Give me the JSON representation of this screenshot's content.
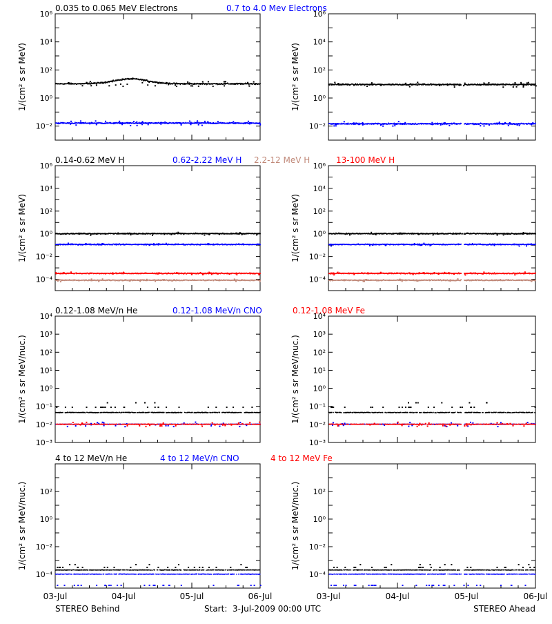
{
  "colors": {
    "black": "#000000",
    "blue": "#0000ff",
    "tan": "#c08878",
    "red": "#ff0000"
  },
  "footer": {
    "left": "STEREO Behind",
    "center": "Start:  3-Jul-2009 00:00 UTC",
    "right": "STEREO Ahead"
  },
  "time_axis": {
    "range": [
      "03-Jul",
      "06-Jul"
    ],
    "ticks": [
      "03-Jul",
      "04-Jul",
      "05-Jul",
      "06-Jul"
    ]
  },
  "chart_data": [
    {
      "type": "scatter",
      "ylabel": "1/(cm² s sr MeV)",
      "yscale": "log",
      "ylim_exp": [
        -3,
        6
      ],
      "y_tick_exps": [
        -2,
        0,
        2,
        4,
        6
      ],
      "legend": [
        {
          "text": "0.035 to 0.065 MeV Electrons",
          "color": "black"
        },
        {
          "text": "0.7 to 4.0 Mev Electrons",
          "color": "blue"
        }
      ],
      "panels": [
        {
          "spacecraft": "STEREO Behind",
          "series": [
            {
              "name": "0.035 to 0.065 MeV Electrons",
              "color": "black",
              "baseline_exp": 1.0,
              "bump": {
                "day": 1.1,
                "width": 0.35,
                "height_exp": 0.35
              }
            },
            {
              "name": "0.7 to 4.0 Mev Electrons",
              "color": "blue",
              "baseline_exp": -1.8
            }
          ]
        },
        {
          "spacecraft": "STEREO Ahead",
          "series": [
            {
              "name": "0.035 to 0.065 MeV Electrons",
              "color": "black",
              "baseline_exp": 0.95
            },
            {
              "name": "0.7 to 4.0 Mev Electrons",
              "color": "blue",
              "baseline_exp": -1.85
            }
          ]
        }
      ]
    },
    {
      "type": "scatter",
      "ylabel": "1/(cm² s sr MeV)",
      "yscale": "log",
      "ylim_exp": [
        -5,
        6
      ],
      "y_tick_exps": [
        -4,
        -2,
        0,
        2,
        4,
        6
      ],
      "legend": [
        {
          "text": "0.14-0.62 MeV H",
          "color": "black"
        },
        {
          "text": "0.62-2.22 MeV H",
          "color": "blue"
        },
        {
          "text": "2.2-12 MeV H",
          "color": "tan"
        },
        {
          "text": "13-100 MeV H",
          "color": "red"
        }
      ],
      "panels": [
        {
          "spacecraft": "STEREO Behind",
          "series": [
            {
              "name": "0.14-0.62 MeV H",
              "color": "black",
              "baseline_exp": 0.0
            },
            {
              "name": "0.62-2.22 MeV H",
              "color": "blue",
              "baseline_exp": -0.95
            },
            {
              "name": "2.2-12 MeV H",
              "color": "tan",
              "baseline_exp": -4.1
            },
            {
              "name": "13-100 MeV H",
              "color": "red",
              "baseline_exp": -3.5
            }
          ]
        },
        {
          "spacecraft": "STEREO Ahead",
          "series": [
            {
              "name": "0.14-0.62 MeV H",
              "color": "black",
              "baseline_exp": 0.0
            },
            {
              "name": "0.62-2.22 MeV H",
              "color": "blue",
              "baseline_exp": -0.95
            },
            {
              "name": "2.2-12 MeV H",
              "color": "tan",
              "baseline_exp": -4.1
            },
            {
              "name": "13-100 MeV H",
              "color": "red",
              "baseline_exp": -3.5
            }
          ]
        }
      ]
    },
    {
      "type": "scatter",
      "ylabel": "1/(cm² s sr MeV/nuc.)",
      "yscale": "log",
      "ylim_exp": [
        -3,
        4
      ],
      "y_tick_exps": [
        -3,
        -2,
        -1,
        0,
        1,
        2,
        3,
        4
      ],
      "legend": [
        {
          "text": "0.12-1.08 MeV/n He",
          "color": "black"
        },
        {
          "text": "0.12-1.08 MeV/n CNO",
          "color": "blue"
        },
        {
          "text": "0.12-1.08 MeV Fe",
          "color": "red"
        }
      ],
      "panels": [
        {
          "spacecraft": "STEREO Behind",
          "series": [
            {
              "name": "0.12-1.08 MeV/n He",
              "color": "black",
              "baseline_exp": -1.35
            },
            {
              "name": "0.12-1.08 MeV/n CNO",
              "color": "blue",
              "baseline_exp": -2.0
            },
            {
              "name": "0.12-1.08 MeV Fe",
              "color": "red",
              "baseline_exp": -2.0
            }
          ]
        },
        {
          "spacecraft": "STEREO Ahead",
          "series": [
            {
              "name": "0.12-1.08 MeV/n He",
              "color": "black",
              "baseline_exp": -1.35
            },
            {
              "name": "0.12-1.08 MeV/n CNO",
              "color": "blue",
              "baseline_exp": -2.0
            },
            {
              "name": "0.12-1.08 MeV Fe",
              "color": "red",
              "baseline_exp": -2.0
            }
          ]
        }
      ]
    },
    {
      "type": "scatter",
      "ylabel": "1/(cm² s sr MeV/nuc.)",
      "yscale": "log",
      "ylim_exp": [
        -5,
        4
      ],
      "y_tick_exps": [
        -4,
        -2,
        0,
        2
      ],
      "legend": [
        {
          "text": "4 to 12 MeV/n He",
          "color": "black"
        },
        {
          "text": "4 to 12 MeV/n CNO",
          "color": "blue"
        },
        {
          "text": "4 to 12 MeV Fe",
          "color": "red"
        }
      ],
      "panels": [
        {
          "spacecraft": "STEREO Behind",
          "series": [
            {
              "name": "4 to 12 MeV/n He",
              "color": "black",
              "baseline_exp": -3.7
            },
            {
              "name": "4 to 12 MeV/n CNO",
              "color": "blue",
              "baseline_exp": -4.0
            }
          ]
        },
        {
          "spacecraft": "STEREO Ahead",
          "series": [
            {
              "name": "4 to 12 MeV/n He",
              "color": "black",
              "baseline_exp": -3.7
            },
            {
              "name": "4 to 12 MeV/n CNO",
              "color": "blue",
              "baseline_exp": -4.0
            }
          ]
        }
      ]
    }
  ]
}
